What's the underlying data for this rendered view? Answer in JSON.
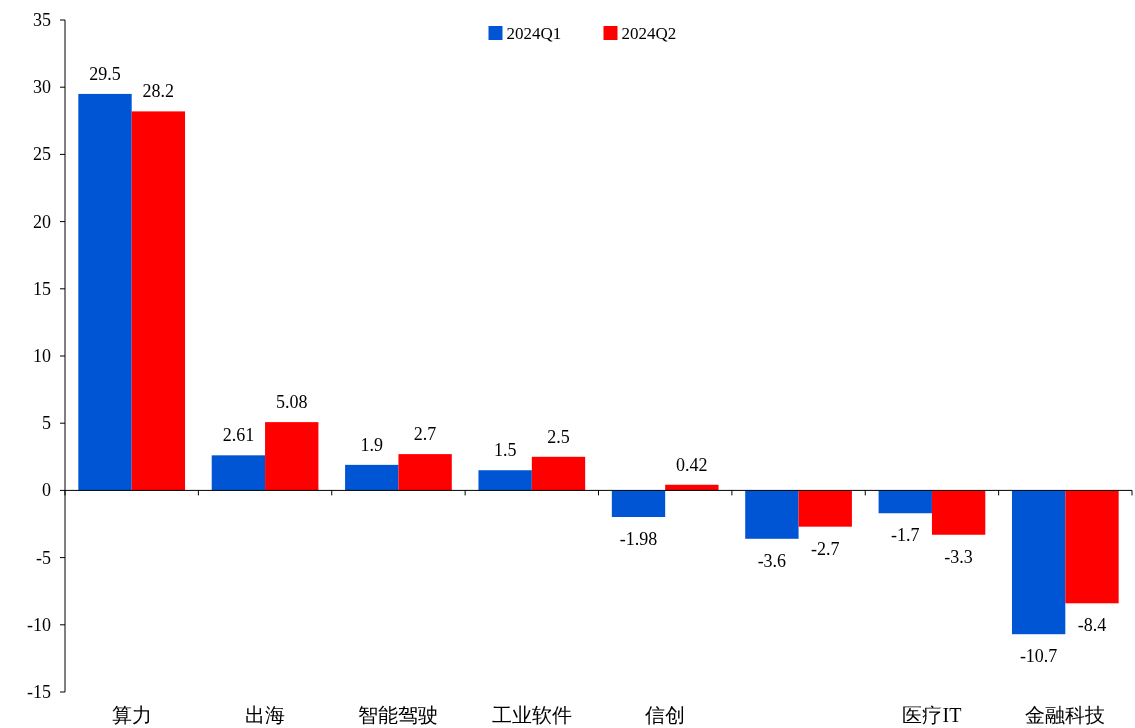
{
  "chart_data": {
    "type": "bar",
    "categories": [
      "算力",
      "出海",
      "智能驾驶",
      "工业软件",
      "信创",
      null,
      "医疗IT",
      "金融科技"
    ],
    "series": [
      {
        "name": "2024Q1",
        "color": "#0055d4",
        "values": [
          29.5,
          2.61,
          1.9,
          1.5,
          -1.98,
          -3.6,
          -1.7,
          -10.7
        ]
      },
      {
        "name": "2024Q2",
        "color": "#ff0000",
        "values": [
          28.2,
          5.08,
          2.7,
          2.5,
          0.42,
          -2.7,
          -3.3,
          -8.4
        ]
      }
    ],
    "ylim": [
      -15,
      35
    ],
    "yticks": [
      -15,
      -10,
      -5,
      0,
      5,
      10,
      15,
      20,
      25,
      30,
      35
    ],
    "data_labels": true,
    "legend": "top"
  }
}
